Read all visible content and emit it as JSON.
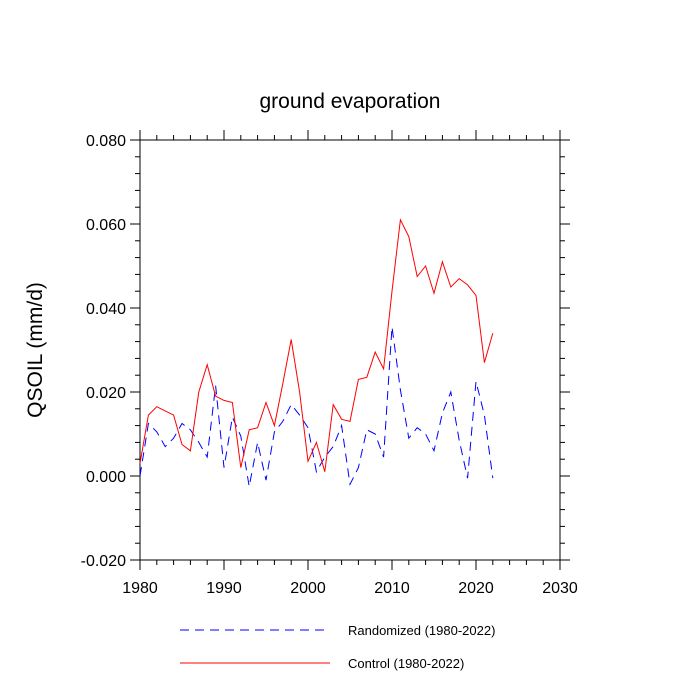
{
  "chart_data": {
    "type": "line",
    "title": "ground evaporation",
    "xlabel": "",
    "ylabel": "QSOIL  (mm/d)",
    "xlim": [
      1980,
      2030
    ],
    "ylim": [
      -0.02,
      0.08
    ],
    "x_ticks": [
      1980,
      1990,
      2000,
      2010,
      2020,
      2030
    ],
    "y_ticks": [
      -0.02,
      0.0,
      0.02,
      0.04,
      0.06,
      0.08
    ],
    "y_tick_labels": [
      "-0.020",
      "0.000",
      "0.020",
      "0.040",
      "0.060",
      "0.080"
    ],
    "x_tick_labels": [
      "1980",
      "1990",
      "2000",
      "2010",
      "2020",
      "2030"
    ],
    "legend_position": "bottom",
    "grid": false,
    "x": [
      1980,
      1981,
      1982,
      1983,
      1984,
      1985,
      1986,
      1987,
      1988,
      1989,
      1990,
      1991,
      1992,
      1993,
      1994,
      1995,
      1996,
      1997,
      1998,
      1999,
      2000,
      2001,
      2002,
      2003,
      2004,
      2005,
      2006,
      2007,
      2008,
      2009,
      2010,
      2011,
      2012,
      2013,
      2014,
      2015,
      2016,
      2017,
      2018,
      2019,
      2020,
      2021,
      2022
    ],
    "series": [
      {
        "name": "Randomized (1980-2022)",
        "color": "#0000ff",
        "style": "dashed",
        "values": [
          0.0,
          0.0125,
          0.0105,
          0.007,
          0.009,
          0.0125,
          0.011,
          0.008,
          0.0045,
          0.0215,
          0.002,
          0.014,
          0.0095,
          -0.0025,
          0.008,
          -0.001,
          0.0105,
          0.013,
          0.017,
          0.0145,
          0.0115,
          0.001,
          0.0045,
          0.007,
          0.012,
          -0.002,
          0.002,
          0.011,
          0.01,
          0.0045,
          0.0355,
          0.0205,
          0.009,
          0.0115,
          0.01,
          0.006,
          0.015,
          0.02,
          0.0085,
          -0.0005,
          0.0225,
          0.0145,
          -0.0005
        ]
      },
      {
        "name": "Control (1980-2022)",
        "color": "#ff0000",
        "style": "solid",
        "values": [
          0.003,
          0.0145,
          0.0165,
          0.0155,
          0.0145,
          0.0075,
          0.006,
          0.02,
          0.0265,
          0.019,
          0.018,
          0.0175,
          0.002,
          0.011,
          0.0115,
          0.0175,
          0.012,
          0.022,
          0.0325,
          0.02,
          0.0035,
          0.008,
          0.001,
          0.017,
          0.0135,
          0.013,
          0.023,
          0.0235,
          0.0295,
          0.0255,
          0.044,
          0.061,
          0.057,
          0.0475,
          0.05,
          0.0435,
          0.051,
          0.045,
          0.047,
          0.0455,
          0.043,
          0.027,
          0.034
        ]
      }
    ]
  }
}
